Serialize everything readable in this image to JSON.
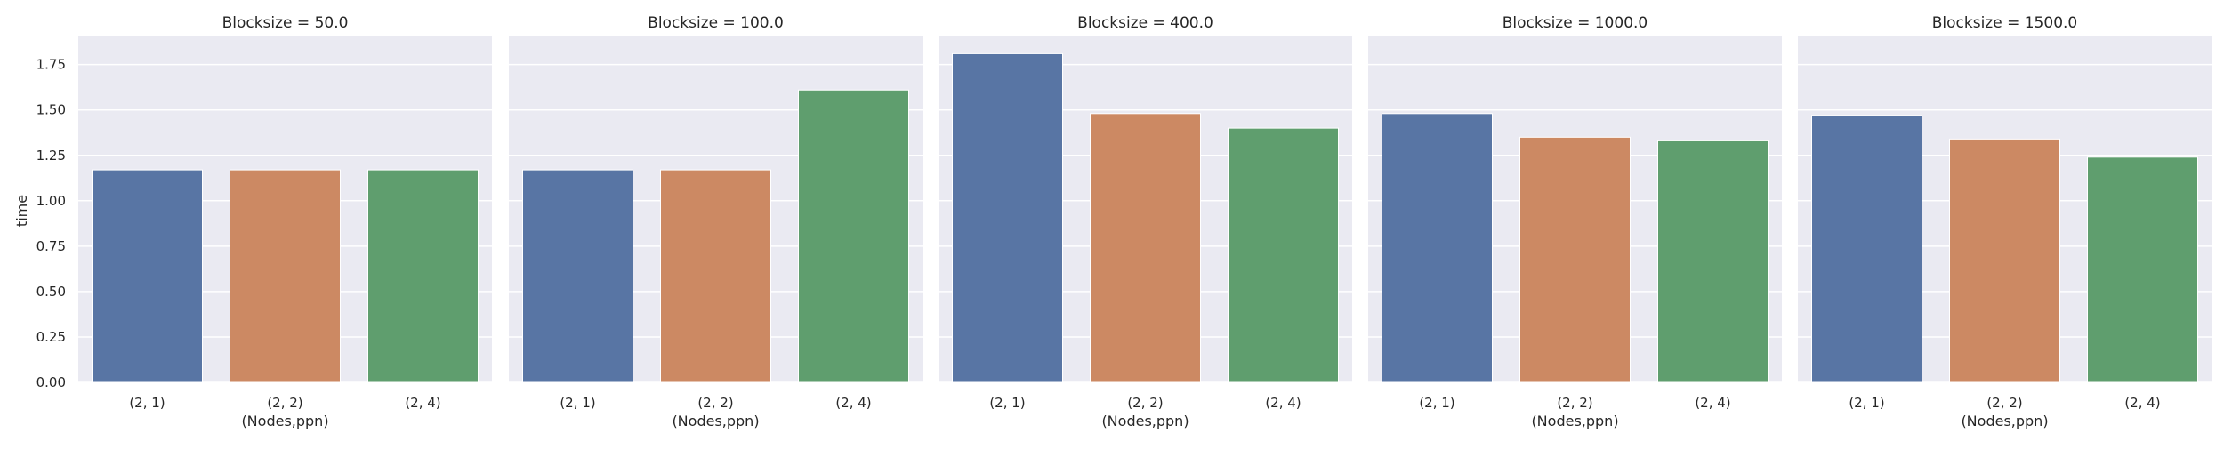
{
  "chart_data": {
    "type": "bar",
    "ylabel": "time",
    "xlabel": "(Nodes,ppn)",
    "categories": [
      "(2, 1)",
      "(2, 2)",
      "(2, 4)"
    ],
    "ylim": [
      0,
      1.91
    ],
    "yticks": [
      "0.00",
      "0.25",
      "0.50",
      "0.75",
      "1.00",
      "1.25",
      "1.50",
      "1.75"
    ],
    "grid": true,
    "colors": [
      "#5875a4",
      "#cc8963",
      "#5f9e6e"
    ],
    "background": "#eaeaf2",
    "panels": [
      {
        "title": "Blocksize = 50.0",
        "values": [
          1.17,
          1.17,
          1.17
        ]
      },
      {
        "title": "Blocksize = 100.0",
        "values": [
          1.17,
          1.17,
          1.61
        ]
      },
      {
        "title": "Blocksize = 400.0",
        "values": [
          1.81,
          1.48,
          1.4
        ]
      },
      {
        "title": "Blocksize = 1000.0",
        "values": [
          1.48,
          1.35,
          1.33
        ]
      },
      {
        "title": "Blocksize = 1500.0",
        "values": [
          1.47,
          1.34,
          1.24
        ]
      }
    ]
  }
}
